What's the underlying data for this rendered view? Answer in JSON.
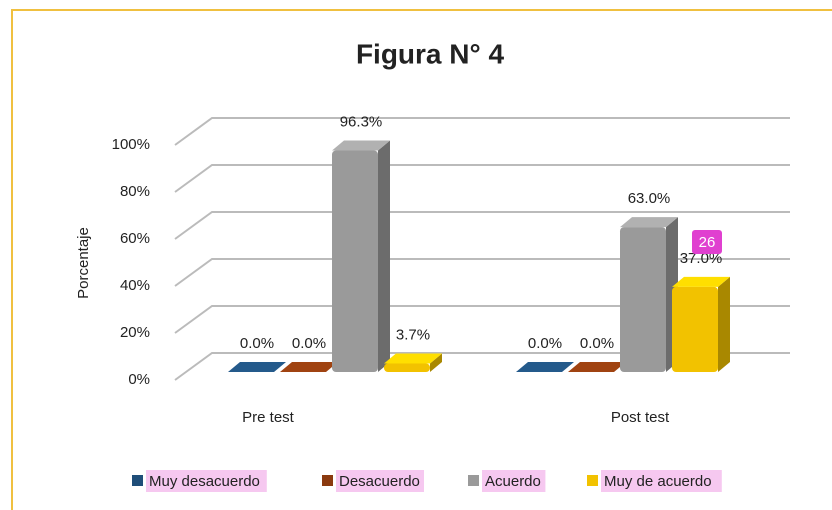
{
  "chart_data": {
    "type": "bar3d",
    "title": "Figura N° 4",
    "y_label": "Porcentaje",
    "categories": [
      "Pre test",
      "Post test"
    ],
    "series": [
      {
        "name": "Muy desacuerdo",
        "color": "#1f4e79",
        "values": [
          0.0,
          0.0
        ],
        "value_labels": [
          "0.0%",
          "0.0%"
        ]
      },
      {
        "name": "Desacuerdo",
        "color": "#8b3a0f",
        "values": [
          0.0,
          0.0
        ],
        "value_labels": [
          "0.0%",
          "0.0%"
        ]
      },
      {
        "name": "Acuerdo",
        "color": "#9a9a9a",
        "values": [
          96.3,
          63.0
        ],
        "value_labels": [
          "96.3%",
          "63.0%"
        ]
      },
      {
        "name": "Muy de acuerdo",
        "color": "#f2c200",
        "values": [
          3.7,
          37.0
        ],
        "value_labels": [
          "3.7%",
          "37.0%"
        ]
      }
    ],
    "ylim": [
      0,
      100
    ],
    "yticks": [
      {
        "value": 0,
        "label": "0%"
      },
      {
        "value": 20,
        "label": "20%"
      },
      {
        "value": 40,
        "label": "40%"
      },
      {
        "value": 60,
        "label": "60%"
      },
      {
        "value": 80,
        "label": "80%"
      },
      {
        "value": 100,
        "label": "100%"
      }
    ],
    "grid": true,
    "legend": "bottom",
    "annotation": "26"
  }
}
